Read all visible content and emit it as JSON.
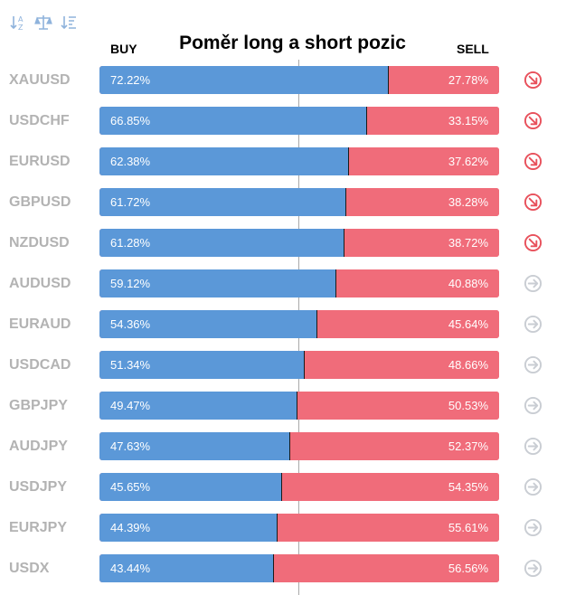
{
  "chart_data": {
    "type": "bar",
    "title": "Poměr long a short pozic",
    "buy_label": "BUY",
    "sell_label": "SELL",
    "categories": [
      "XAUUSD",
      "USDCHF",
      "EURUSD",
      "GBPUSD",
      "NZDUSD",
      "AUDUSD",
      "EURAUD",
      "USDCAD",
      "GBPJPY",
      "AUDJPY",
      "USDJPY",
      "EURJPY",
      "USDX"
    ],
    "series": [
      {
        "name": "BUY",
        "values": [
          72.22,
          66.85,
          62.38,
          61.72,
          61.28,
          59.12,
          54.36,
          51.34,
          49.47,
          47.63,
          45.65,
          44.39,
          43.44
        ]
      },
      {
        "name": "SELL",
        "values": [
          27.78,
          33.15,
          37.62,
          38.28,
          38.72,
          40.88,
          45.64,
          48.66,
          50.53,
          52.37,
          54.35,
          55.61,
          56.56
        ]
      }
    ],
    "buy_texts": [
      "72.22%",
      "66.85%",
      "62.38%",
      "61.72%",
      "61.28%",
      "59.12%",
      "54.36%",
      "51.34%",
      "49.47%",
      "47.63%",
      "45.65%",
      "44.39%",
      "43.44%"
    ],
    "sell_texts": [
      "27.78%",
      "33.15%",
      "37.62%",
      "38.28%",
      "38.72%",
      "40.88%",
      "45.64%",
      "48.66%",
      "50.53%",
      "52.37%",
      "54.35%",
      "55.61%",
      "56.56%"
    ],
    "trend_icons": [
      "arrow-down-right-icon",
      "arrow-down-right-icon",
      "arrow-down-right-icon",
      "arrow-down-right-icon",
      "arrow-down-right-icon",
      "arrow-right-icon",
      "arrow-right-icon",
      "arrow-right-icon",
      "arrow-right-icon",
      "arrow-right-icon",
      "arrow-right-icon",
      "arrow-right-icon",
      "arrow-right-icon"
    ],
    "xlim": [
      0,
      100
    ],
    "stacked": true,
    "orientation": "horizontal"
  },
  "colors": {
    "buy": "#5b98d8",
    "sell": "#f06c7a",
    "symbol_text": "#b3b3b3",
    "trend_down": "#e8505b",
    "trend_neutral": "#c9cdd3",
    "toolbar_icon": "#8fb3dc"
  },
  "toolbar": {
    "icons": [
      "sort-alpha-icon",
      "balance-scale-icon",
      "sort-numeric-icon"
    ]
  }
}
